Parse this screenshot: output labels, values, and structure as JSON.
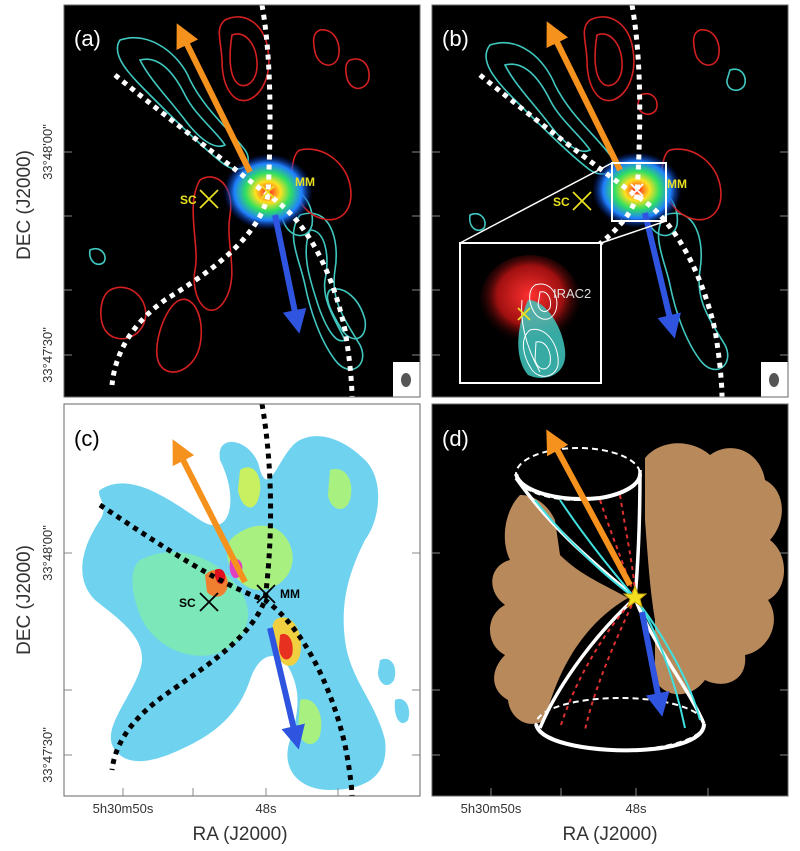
{
  "figure": {
    "panels": [
      {
        "tag": "(a)",
        "sc_label": "SC",
        "mm_label": "MM"
      },
      {
        "tag": "(b)",
        "sc_label": "SC",
        "mm_label": "MM",
        "inset_label": "IRAC2"
      },
      {
        "tag": "(c)",
        "sc_label": "SC",
        "mm_label": "MM"
      },
      {
        "tag": "(d)"
      }
    ],
    "axes": {
      "ylabel": "DEC (J2000)",
      "xlabel": "RA (J2000)",
      "yticks": [
        "33°48'00\"",
        "33°47'30\""
      ],
      "xticks": [
        "5h30m50s",
        "48s"
      ]
    },
    "colors": {
      "redshift_contour": "#d42020",
      "blueshift_contour": "#40c8c0",
      "arrow_orange": "#f5921e",
      "arrow_blue": "#2f55e0",
      "sc_marker": "#e8e020",
      "mm_marker": "#e8e020",
      "cavity_walls": "#b8895a",
      "star": "#f2e020"
    }
  }
}
